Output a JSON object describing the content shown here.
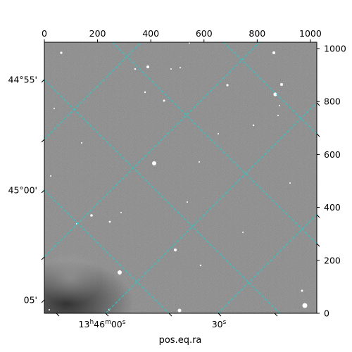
{
  "figure": {
    "xlabel": "pos.eq.ra",
    "pixel_axis": {
      "range": [
        0,
        1024
      ],
      "top_ticks": [
        {
          "value": 0,
          "label": "0"
        },
        {
          "value": 200,
          "label": "200"
        },
        {
          "value": 400,
          "label": "400"
        },
        {
          "value": 600,
          "label": "600"
        },
        {
          "value": 800,
          "label": "800"
        },
        {
          "value": 1000,
          "label": "1000"
        }
      ],
      "right_ticks": [
        {
          "value": 0,
          "label": "0"
        },
        {
          "value": 200,
          "label": "200"
        },
        {
          "value": 400,
          "label": "400"
        },
        {
          "value": 600,
          "label": "600"
        },
        {
          "value": 800,
          "label": "800"
        },
        {
          "value": 1000,
          "label": "1000"
        }
      ]
    },
    "dec_labels": [
      "44°55'",
      "45°00'",
      "05'"
    ],
    "ra_labels": [
      {
        "base": "13",
        "h": "h",
        "m_val": "46",
        "m": "m",
        "s_val": "00",
        "s": "s"
      },
      {
        "base": "30",
        "h": "",
        "m_val": "",
        "m": "",
        "s_val": "",
        "s": "s"
      }
    ],
    "grid_color": "#18d2d2",
    "image_tint": "#7f7f7f"
  }
}
